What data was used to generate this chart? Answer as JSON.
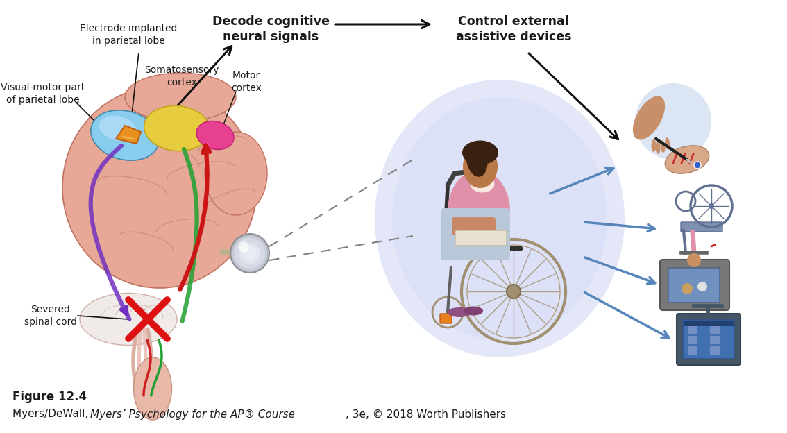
{
  "figure_label": "Figure 12.4",
  "bg_color": "#ffffff",
  "text_color": "#1a1a1a",
  "arrow_color": "#111111",
  "blue_arrow_color": "#5585bb",
  "glow_color": "#d0d8f0",
  "brain_base": "#e8a898",
  "brain_light": "#f5d0c5",
  "brain_white": "#f8f0ec",
  "blue_region": "#7bc8e8",
  "yellow_region": "#e8c840",
  "pink_region": "#e860a0",
  "title_step1": "Decode cognitive\nneural signals",
  "title_step2": "Control external\nassistive devices",
  "label_electrode": "Electrode implanted\nin parietal lobe",
  "label_visual_motor": "Visual-motor part\nof parietal lobe",
  "label_somatosensory": "Somatosensory\ncortex",
  "label_motor": "Motor\ncortex",
  "label_severed": "Severed\nspinal cord"
}
